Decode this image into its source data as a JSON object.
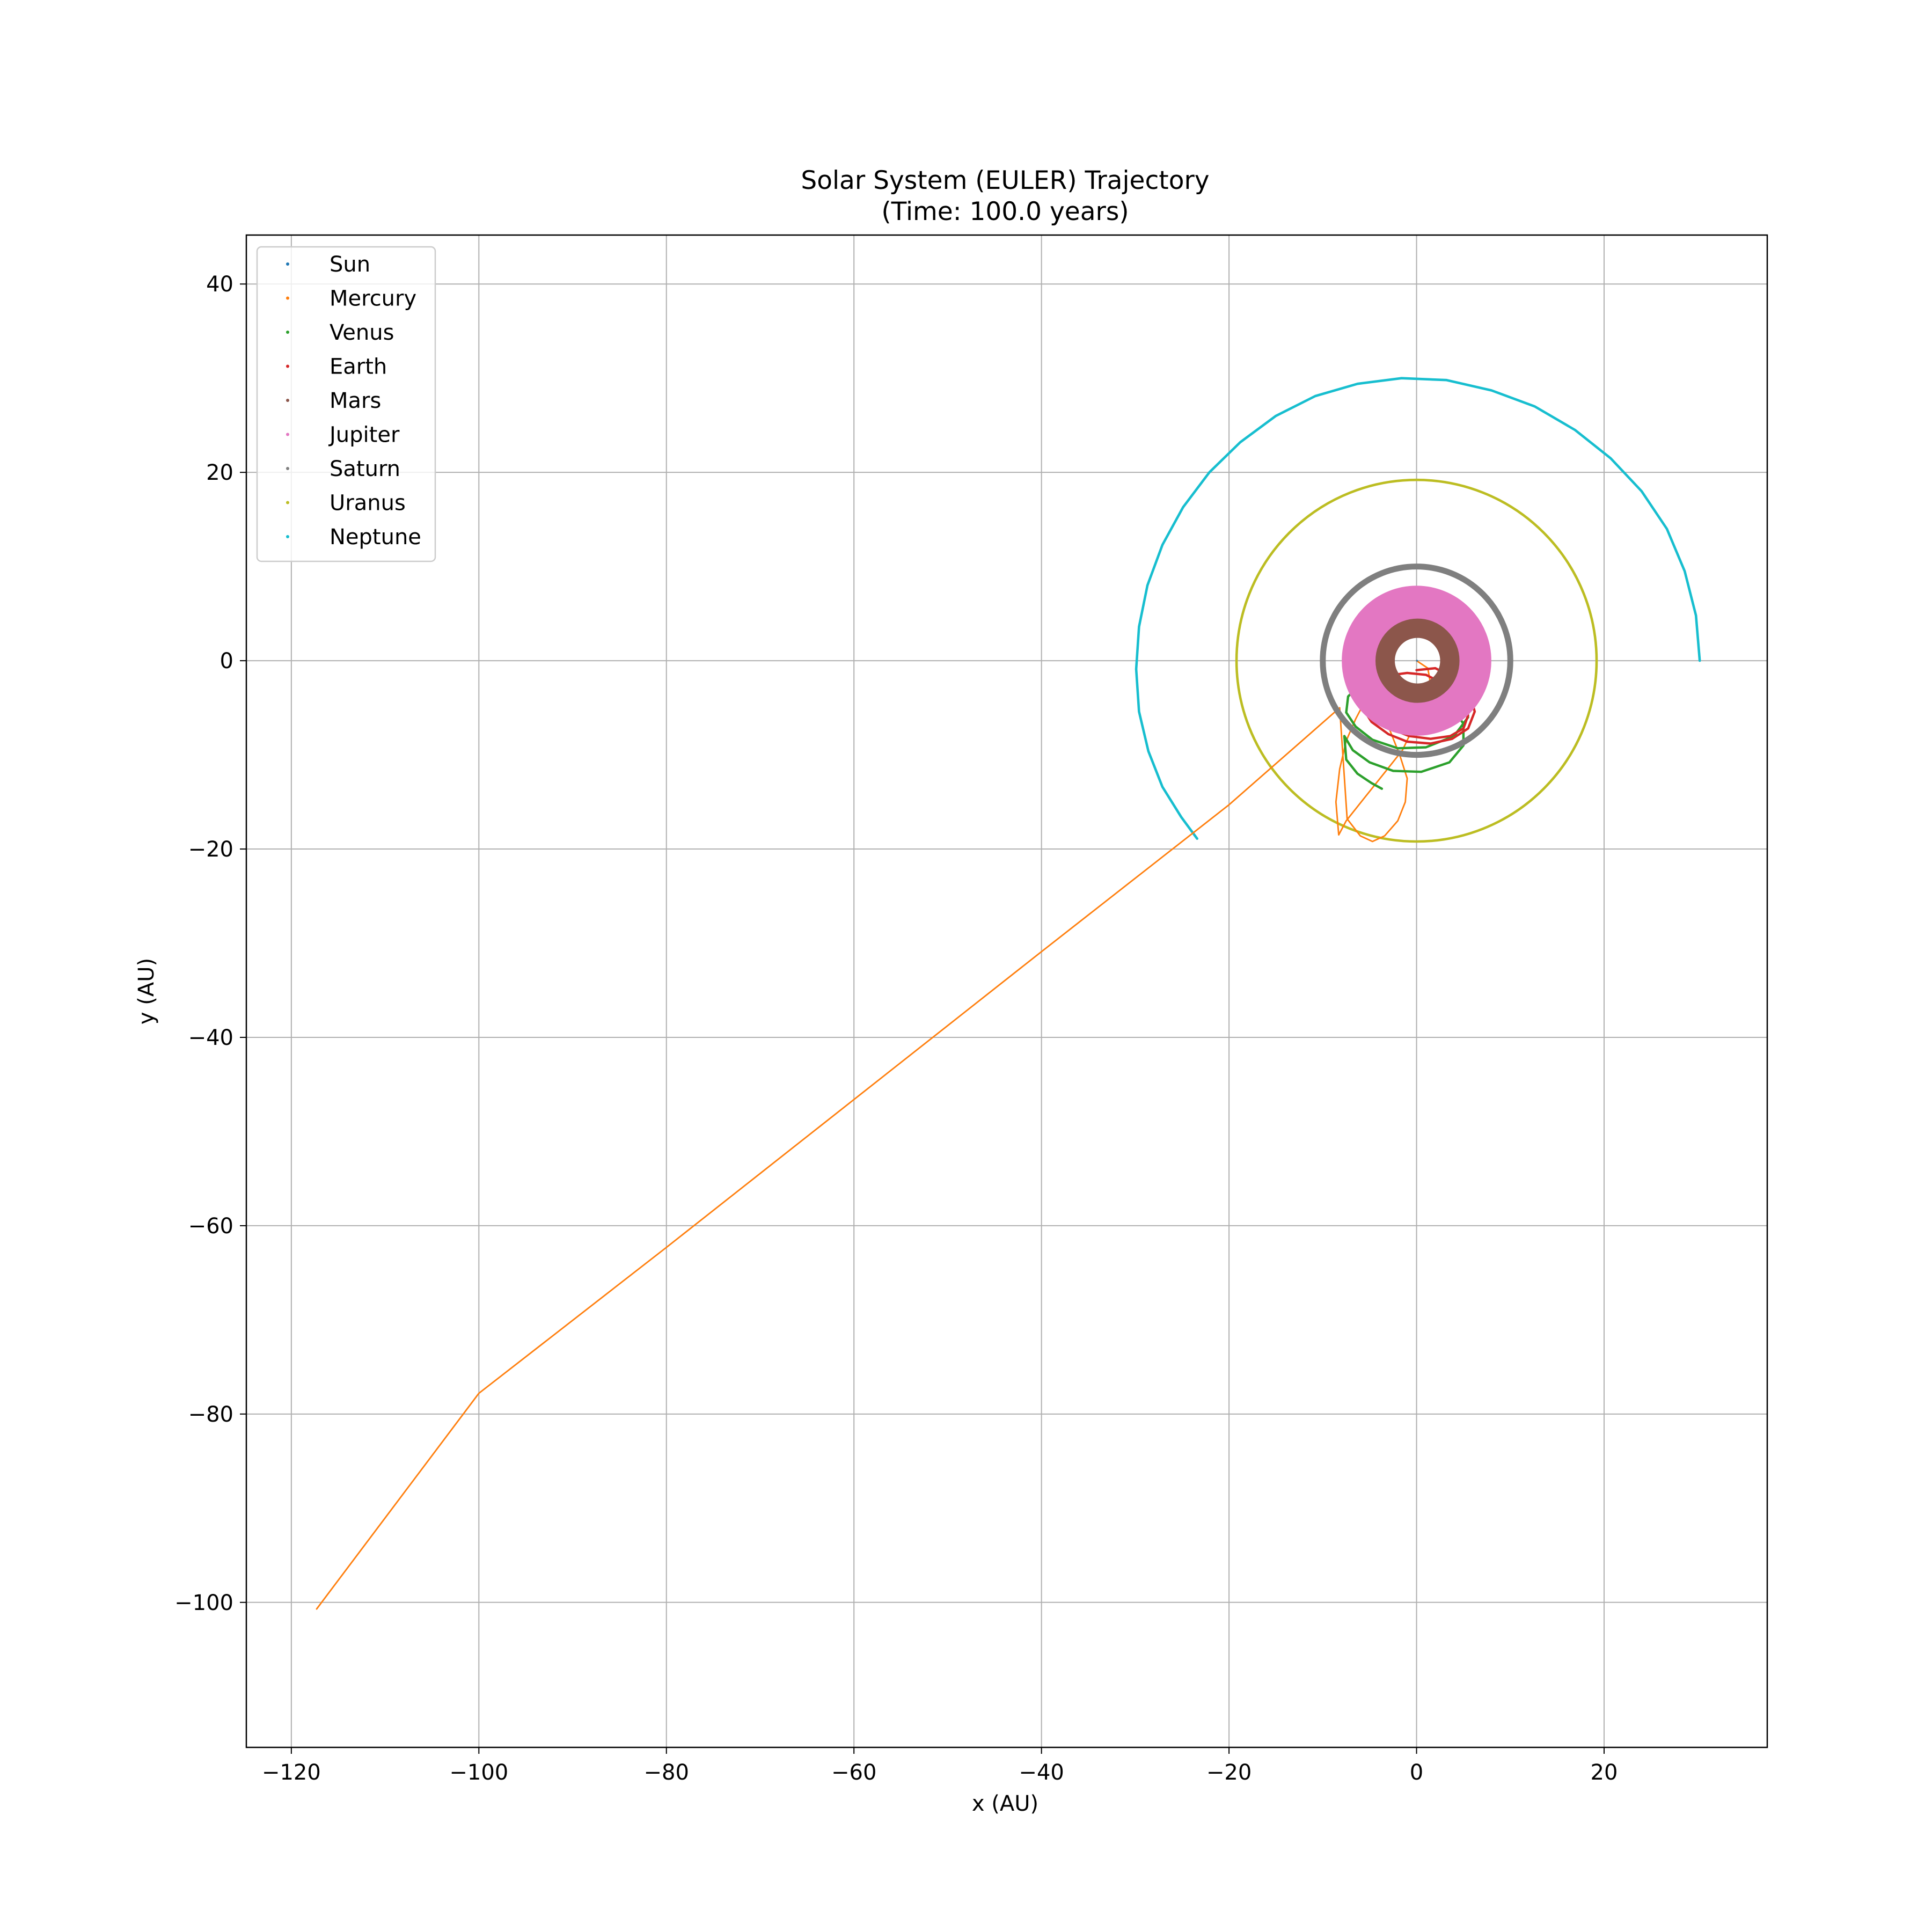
{
  "chart_data": {
    "type": "line",
    "title": "Solar System (EULER) Trajectory",
    "subtitle": "(Time: 100.0 years)",
    "xlabel": "x (AU)",
    "ylabel": "y (AU)",
    "xlim": [
      -124.8,
      37.4
    ],
    "ylim": [
      -115.4,
      45.2
    ],
    "xticks": [
      -120,
      -100,
      -80,
      -60,
      -40,
      -20,
      0,
      20
    ],
    "yticks": [
      -100,
      -80,
      -60,
      -40,
      -20,
      0,
      20,
      40
    ],
    "xtick_labels": [
      "−120",
      "−100",
      "−80",
      "−60",
      "−40",
      "−20",
      "0",
      "20"
    ],
    "ytick_labels": [
      "−100",
      "−80",
      "−60",
      "−40",
      "−20",
      "0",
      "20",
      "40"
    ],
    "grid": true,
    "legend_position": "top-left",
    "series": [
      {
        "name": "Sun",
        "color": "#1f77b4",
        "width": 2,
        "x": [
          0,
          0.05,
          0.1,
          0.05,
          0
        ],
        "y": [
          0,
          0.05,
          0,
          -0.05,
          0
        ]
      },
      {
        "name": "Mercury",
        "color": "#ff7f0e",
        "width": 2.8,
        "x": [
          0,
          1.2,
          1.5,
          0.9,
          -0.3,
          -1.5,
          -3.5,
          -5.5,
          -7.5,
          -8.3,
          -8.6,
          -8.2,
          -7.5,
          -6.5,
          -5.5,
          -4.5,
          -3.0,
          -1.8,
          -1.0,
          -1.2,
          -2.0,
          -3.4,
          -4.7,
          -6.0,
          -7.4,
          -8.2,
          -20,
          -40,
          -60,
          -80,
          -100,
          -117.3
        ],
        "y": [
          0,
          -0.8,
          -2.5,
          -4.5,
          -7.0,
          -9.5,
          -12.0,
          -14.5,
          -17.0,
          -18.5,
          -15.0,
          -11.5,
          -8.5,
          -6.2,
          -4.3,
          -3.0,
          -7.0,
          -10.0,
          -12.5,
          -15.0,
          -17.0,
          -18.6,
          -19.2,
          -18.6,
          -16.8,
          -5.0,
          -15.3,
          -30.9,
          -46.6,
          -62.3,
          -77.8,
          -100.7
        ]
      },
      {
        "name": "Venus",
        "color": "#2ca02c",
        "width": 4.4,
        "x": [
          3.0,
          5.0,
          5.5,
          4.0,
          1.0,
          -2.0,
          -4.7,
          -6.5,
          -7.5,
          -7.3,
          -6.0,
          -4.5,
          -3.5,
          -2.0,
          1.0,
          3.5,
          5.0,
          5.0,
          3.5,
          0.5,
          -2.5,
          -5.0,
          -6.8,
          -7.7,
          -7.5,
          -6.3,
          -4.8,
          -3.7
        ],
        "y": [
          -1.5,
          -3.5,
          -6.0,
          -8.0,
          -9.2,
          -9.3,
          -8.4,
          -7.0,
          -5.5,
          -3.8,
          -2.5,
          -1.8,
          -1.5,
          -2.5,
          -3.0,
          -4.5,
          -6.7,
          -9.0,
          -10.8,
          -11.8,
          -11.7,
          -10.8,
          -9.5,
          -8.0,
          -10.5,
          -12.0,
          -13.0,
          -13.6
        ]
      },
      {
        "name": "Earth",
        "color": "#d62728",
        "width": 4.4,
        "x": [
          0,
          2.0,
          4.0,
          5.7,
          6.2,
          5.5,
          3.8,
          1.5,
          -1.0,
          -3.0,
          -4.8,
          -5.9,
          -6.0,
          -5.0,
          -3.2,
          -1.0,
          1.0,
          3.0,
          4.8,
          5.5,
          5.0,
          3.6,
          1.5,
          -0.8,
          -2.8,
          -4.3,
          -5.0
        ],
        "y": [
          -1.0,
          -0.8,
          -1.8,
          -3.5,
          -5.4,
          -7.2,
          -8.3,
          -8.8,
          -8.6,
          -7.8,
          -6.5,
          -4.8,
          -3.2,
          -2.2,
          -1.6,
          -1.3,
          -1.5,
          -2.5,
          -4.0,
          -5.8,
          -7.2,
          -8.0,
          -8.3,
          -8.0,
          -7.2,
          -6.2,
          -5.3
        ]
      },
      {
        "name": "Mars",
        "color": "#8c564b",
        "width": 36,
        "x": [
          0.1
        ],
        "y": [
          0.0
        ],
        "r": 3.45,
        "circle": true
      },
      {
        "name": "Jupiter",
        "color": "#e377c2",
        "width": 90,
        "x": [
          0.0
        ],
        "y": [
          0.0
        ],
        "r": 5.4,
        "circle": true
      },
      {
        "name": "Saturn",
        "color": "#7f7f7f",
        "width": 11,
        "x": [
          0.0
        ],
        "y": [
          0.0
        ],
        "r": 10.0,
        "circle": true
      },
      {
        "name": "Uranus",
        "color": "#bcbd22",
        "width": 4.6,
        "x": [
          0.0
        ],
        "y": [
          0.0
        ],
        "r": 19.2,
        "circle": true
      },
      {
        "name": "Neptune",
        "color": "#17becf",
        "width": 4.6,
        "x": [
          30.2,
          29.8,
          28.6,
          26.7,
          24.0,
          20.7,
          16.9,
          12.6,
          8.0,
          3.2,
          -1.6,
          -6.3,
          -10.8,
          -15.0,
          -18.8,
          -22.1,
          -24.9,
          -27.1,
          -28.7,
          -29.6,
          -29.9,
          -29.6,
          -28.6,
          -27.1,
          -25.1,
          -23.4
        ],
        "y": [
          0.0,
          4.8,
          9.5,
          14.0,
          18.0,
          21.5,
          24.5,
          27.0,
          28.7,
          29.8,
          30.0,
          29.4,
          28.1,
          26.0,
          23.2,
          20.0,
          16.3,
          12.3,
          8.0,
          3.6,
          -0.9,
          -5.4,
          -9.6,
          -13.4,
          -16.6,
          -18.9
        ]
      }
    ]
  }
}
